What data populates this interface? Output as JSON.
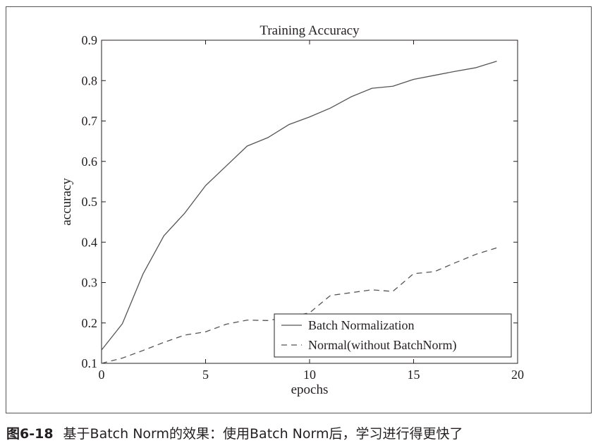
{
  "chart_data": {
    "type": "line",
    "title": "Training Accuracy",
    "xlabel": "epochs",
    "ylabel": "accuracy",
    "xlim": [
      0,
      20
    ],
    "ylim": [
      0.1,
      0.9
    ],
    "xticks": [
      "0",
      "5",
      "10",
      "15",
      "20"
    ],
    "yticks": [
      "0.1",
      "0.2",
      "0.3",
      "0.4",
      "0.5",
      "0.6",
      "0.7",
      "0.8",
      "0.9"
    ],
    "grid": false,
    "legend_position": "bottom-right",
    "x": [
      0,
      1,
      2,
      3,
      4,
      5,
      6,
      7,
      8,
      9,
      10,
      11,
      12,
      13,
      14,
      15,
      16,
      17,
      18,
      19
    ],
    "series": [
      {
        "name": "Batch Normalization",
        "style": "solid",
        "color": "#555555",
        "values": [
          0.133,
          0.198,
          0.322,
          0.416,
          0.472,
          0.54,
          0.589,
          0.638,
          0.659,
          0.691,
          0.71,
          0.732,
          0.76,
          0.781,
          0.786,
          0.803,
          0.813,
          0.823,
          0.832,
          0.848
        ]
      },
      {
        "name": "Normal(without BatchNorm)",
        "style": "dashed",
        "color": "#555555",
        "values": [
          0.1,
          0.113,
          0.132,
          0.152,
          0.17,
          0.178,
          0.197,
          0.207,
          0.206,
          0.215,
          0.225,
          0.268,
          0.275,
          0.282,
          0.278,
          0.322,
          0.327,
          0.349,
          0.37,
          0.386
        ]
      }
    ]
  },
  "caption": {
    "figure_number": "图6-18",
    "text": "基于Batch Norm的效果：使用Batch Norm后，学习进行得更快了"
  }
}
